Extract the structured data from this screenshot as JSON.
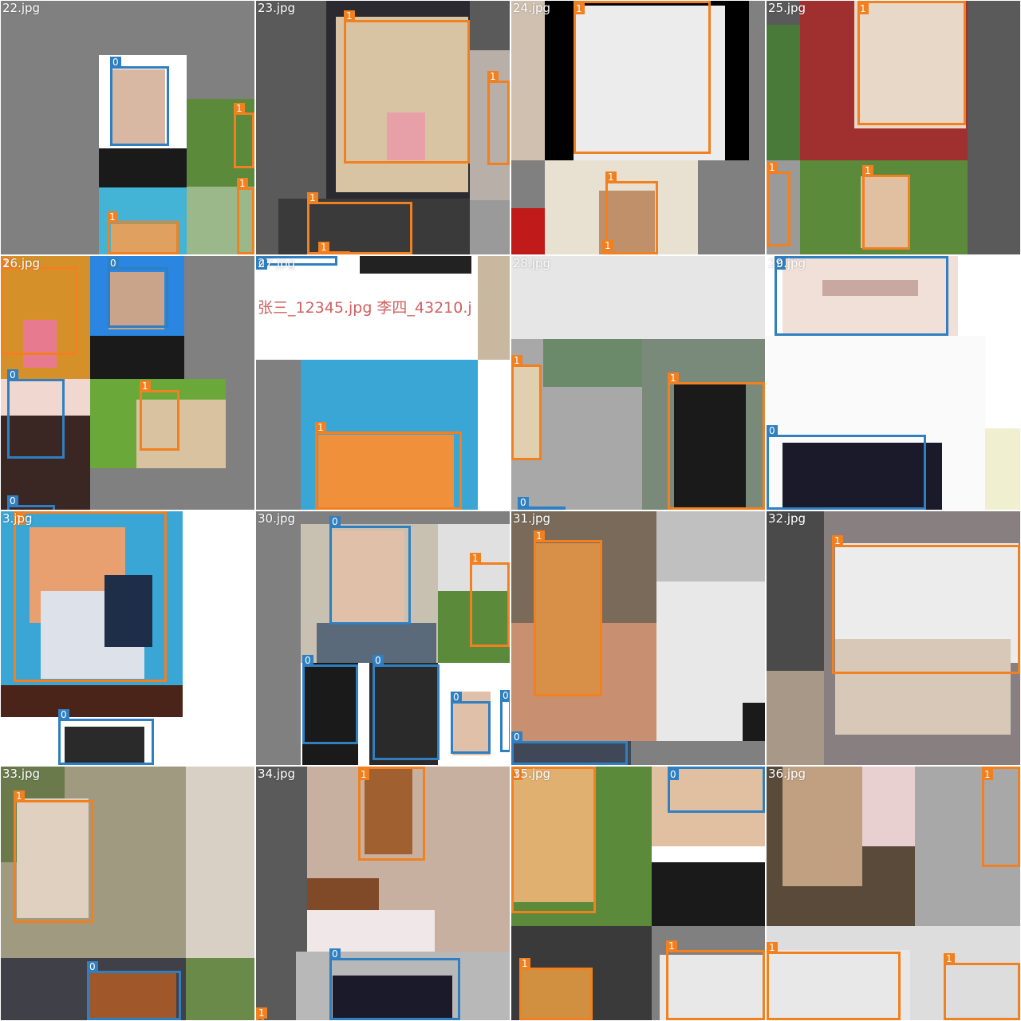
{
  "colors": {
    "face": "#2f7fc1",
    "dog": "#f08020",
    "pad": "#808080"
  },
  "tiles": [
    {
      "label": "22.jpg",
      "pad": "#808080",
      "patches": [
        [
          "#ffffff",
          123,
          68,
          110,
          166
        ],
        [
          "#1a1a1a",
          123,
          185,
          110,
          50
        ],
        [
          "#d9b8a3",
          140,
          86,
          66,
          96
        ],
        [
          "#5a8a3a",
          233,
          123,
          85,
          110
        ],
        [
          "#9ab88a",
          233,
          233,
          85,
          85
        ],
        [
          "#44b4d6",
          123,
          234,
          110,
          84
        ],
        [
          "#e0a060",
          138,
          280,
          82,
          38
        ]
      ],
      "boxes": [
        [
          "0",
          "face",
          137,
          82,
          74,
          100
        ],
        [
          "1",
          "dog",
          292,
          140,
          26,
          70
        ],
        [
          "1",
          "dog",
          296,
          234,
          22,
          84
        ],
        [
          "1",
          "dog",
          133,
          276,
          90,
          42
        ]
      ]
    },
    {
      "label": "26.jpg",
      "pad": "#808080",
      "patches": [
        [
          "#d6902a",
          0,
          0,
          112,
          154
        ],
        [
          "#e87a90",
          28,
          80,
          42,
          60
        ],
        [
          "#2a86e0",
          112,
          0,
          118,
          154
        ],
        [
          "#1a1a1a",
          112,
          100,
          118,
          54
        ],
        [
          "#c9a48a",
          135,
          20,
          70,
          72
        ],
        [
          "#f0d8d0",
          0,
          154,
          112,
          164
        ],
        [
          "#3a2622",
          0,
          200,
          112,
          118
        ],
        [
          "#6aa83a",
          112,
          154,
          170,
          112
        ],
        [
          "#d8c2a0",
          170,
          180,
          112,
          86
        ]
      ],
      "boxes": [
        [
          "1",
          "dog",
          0,
          14,
          96,
          110
        ],
        [
          "0",
          "face",
          134,
          14,
          76,
          76
        ],
        [
          "0",
          "face",
          8,
          154,
          72,
          100
        ],
        [
          "1",
          "dog",
          174,
          168,
          50,
          76
        ],
        [
          "0",
          "face",
          8,
          312,
          60,
          10
        ]
      ]
    },
    {
      "label": "3.jpg",
      "pad": "#ffffff",
      "patches": [
        [
          "#3aa6d6",
          0,
          0,
          228,
          258
        ],
        [
          "#e8a070",
          36,
          20,
          120,
          120
        ],
        [
          "#dde2ea",
          50,
          100,
          130,
          110
        ],
        [
          "#1e2e48",
          130,
          80,
          60,
          90
        ],
        [
          "#4a2418",
          0,
          218,
          228,
          40
        ],
        [
          "#2a2a2a",
          80,
          270,
          100,
          48
        ]
      ],
      "boxes": [
        [
          "1",
          "dog",
          16,
          0,
          192,
          214
        ],
        [
          "0",
          "face",
          72,
          260,
          120,
          58
        ]
      ]
    },
    {
      "label": "33.jpg",
      "pad": "#808080",
      "patches": [
        [
          "#a09a80",
          0,
          0,
          232,
          240
        ],
        [
          "#6a7a4a",
          0,
          0,
          80,
          120
        ],
        [
          "#e0d0c0",
          20,
          40,
          90,
          150
        ],
        [
          "#d8d0c4",
          232,
          0,
          86,
          240
        ],
        [
          "#404048",
          0,
          240,
          232,
          78
        ],
        [
          "#a0582a",
          110,
          258,
          110,
          60
        ],
        [
          "#6a8a4a",
          232,
          240,
          86,
          78
        ]
      ],
      "boxes": [
        [
          "1",
          "dog",
          16,
          42,
          100,
          154
        ],
        [
          "0",
          "face",
          108,
          256,
          118,
          62
        ]
      ]
    },
    {
      "label": "23.jpg",
      "pad": "#5a5a5a",
      "patches": [
        [
          "#2a2a30",
          88,
          0,
          180,
          250
        ],
        [
          "#d8c4a2",
          100,
          20,
          166,
          220
        ],
        [
          "#e8a0a8",
          164,
          140,
          48,
          60
        ],
        [
          "#b8b0a8",
          268,
          62,
          50,
          188
        ],
        [
          "#3a3a3a",
          28,
          248,
          240,
          70
        ],
        [
          "#9a9a9a",
          268,
          250,
          50,
          68
        ]
      ],
      "boxes": [
        [
          "1",
          "dog",
          110,
          24,
          158,
          180
        ],
        [
          "1",
          "dog",
          290,
          100,
          28,
          106
        ],
        [
          "1",
          "dog",
          64,
          252,
          132,
          66
        ],
        [
          "1",
          "dog",
          78,
          314,
          40,
          8
        ]
      ]
    },
    {
      "label": "27.jpg",
      "pad": "#ffffff",
      "patches": [
        [
          "#222222",
          130,
          0,
          140,
          22
        ],
        [
          "#c8b8a0",
          278,
          0,
          40,
          130
        ],
        [
          "#808080",
          0,
          130,
          56,
          188
        ],
        [
          "#3aa6d6",
          56,
          130,
          222,
          188
        ],
        [
          "#f0903a",
          78,
          224,
          170,
          94
        ]
      ],
      "boxes": [
        [
          "1",
          "dog",
          74,
          220,
          184,
          98
        ],
        [
          "0",
          "face",
          0,
          0,
          102,
          12
        ]
      ],
      "text": [
        "张三_12345.jpg 李四_43210.j",
        2,
        50
      ]
    },
    {
      "label": "30.jpg",
      "pad": "#808080",
      "patches": [
        [
          "#c8c0b0",
          56,
          16,
          174,
          178
        ],
        [
          "#e0c0a8",
          96,
          24,
          90,
          120
        ],
        [
          "#5a6a7a",
          76,
          140,
          150,
          54
        ],
        [
          "#e0e0e0",
          228,
          16,
          90,
          178
        ],
        [
          "#5a8a3a",
          228,
          100,
          90,
          94
        ],
        [
          "#ffffff",
          56,
          190,
          262,
          128
        ],
        [
          "#1a1a1a",
          58,
          190,
          70,
          128
        ],
        [
          "#2a2a2a",
          142,
          190,
          86,
          128
        ],
        [
          "#e0c0a8",
          246,
          226,
          48,
          80
        ]
      ],
      "boxes": [
        [
          "0",
          "face",
          92,
          18,
          102,
          124
        ],
        [
          "1",
          "dog",
          268,
          64,
          50,
          106
        ],
        [
          "0",
          "face",
          58,
          192,
          70,
          100
        ],
        [
          "0",
          "face",
          146,
          192,
          84,
          120
        ],
        [
          "0",
          "face",
          244,
          238,
          50,
          66
        ],
        [
          "0",
          "face",
          306,
          236,
          14,
          66
        ]
      ]
    },
    {
      "label": "34.jpg",
      "pad": "#5a5a5a",
      "patches": [
        [
          "#c8b0a0",
          64,
          0,
          254,
          232
        ],
        [
          "#a06030",
          136,
          0,
          60,
          110
        ],
        [
          "#804a28",
          64,
          140,
          90,
          50
        ],
        [
          "#f0e8e8",
          64,
          180,
          160,
          52
        ],
        [
          "#b8b8b8",
          50,
          232,
          268,
          86
        ],
        [
          "#1a1a2a",
          96,
          262,
          150,
          56
        ]
      ],
      "boxes": [
        [
          "1",
          "dog",
          128,
          0,
          84,
          118
        ],
        [
          "0",
          "face",
          92,
          240,
          164,
          78
        ],
        [
          "1",
          "dog",
          0,
          314,
          10,
          8
        ]
      ]
    },
    {
      "label": "24.jpg",
      "pad": "#808080",
      "patches": [
        [
          "#d0c0b0",
          0,
          0,
          42,
          200
        ],
        [
          "#000000",
          42,
          0,
          256,
          200
        ],
        [
          "#ececec",
          78,
          6,
          190,
          194
        ],
        [
          "#e8e0d0",
          42,
          200,
          192,
          118
        ],
        [
          "#c01a1a",
          0,
          260,
          42,
          58
        ],
        [
          "#c0906a",
          110,
          238,
          70,
          80
        ]
      ],
      "boxes": [
        [
          "1",
          "dog",
          78,
          0,
          172,
          192
        ],
        [
          "1",
          "dog",
          118,
          226,
          66,
          92
        ],
        [
          "1",
          "dog",
          114,
          312,
          10,
          8
        ]
      ]
    },
    {
      "label": "28.jpg",
      "pad": "#808080",
      "patches": [
        [
          "#e6e6e6",
          0,
          0,
          320,
          104
        ],
        [
          "#a8a8a8",
          0,
          104,
          164,
          214
        ],
        [
          "#6a8a6a",
          40,
          104,
          124,
          60
        ],
        [
          "#7a8a7a",
          164,
          104,
          154,
          214
        ],
        [
          "#1a1a1a",
          204,
          160,
          90,
          158
        ],
        [
          "#e0d0b0",
          0,
          136,
          38,
          120
        ]
      ],
      "boxes": [
        [
          "1",
          "dog",
          0,
          136,
          38,
          120
        ],
        [
          "1",
          "dog",
          196,
          158,
          122,
          160
        ],
        [
          "0",
          "face",
          8,
          314,
          60,
          6
        ]
      ]
    },
    {
      "label": "31.jpg",
      "pad": "#808080",
      "patches": [
        [
          "#7a6a5a",
          0,
          0,
          182,
          288
        ],
        [
          "#c89070",
          0,
          140,
          182,
          148
        ],
        [
          "#d89048",
          28,
          40,
          84,
          190
        ],
        [
          "#c0c0c0",
          182,
          0,
          136,
          88
        ],
        [
          "#e8e8e8",
          182,
          88,
          136,
          200
        ],
        [
          "#1a1a1a",
          290,
          240,
          28,
          48
        ],
        [
          "#404858",
          0,
          288,
          150,
          30
        ]
      ],
      "boxes": [
        [
          "1",
          "dog",
          28,
          36,
          86,
          196
        ],
        [
          "0",
          "face",
          0,
          288,
          146,
          30
        ]
      ]
    },
    {
      "label": "35.jpg",
      "pad": "#808080",
      "patches": [
        [
          "#5a8a3a",
          0,
          0,
          176,
          200
        ],
        [
          "#e0b070",
          0,
          0,
          106,
          170
        ],
        [
          "#e0c0a0",
          176,
          0,
          142,
          100
        ],
        [
          "#1a1a1a",
          176,
          100,
          142,
          100
        ],
        [
          "#ffffff",
          176,
          100,
          142,
          20
        ],
        [
          "#3a3a3a",
          0,
          200,
          176,
          118
        ],
        [
          "#d09040",
          10,
          254,
          92,
          64
        ],
        [
          "#e8e8e8",
          186,
          236,
          132,
          82
        ]
      ],
      "boxes": [
        [
          "1",
          "dog",
          0,
          0,
          106,
          184
        ],
        [
          "0",
          "face",
          196,
          0,
          122,
          58
        ],
        [
          "1",
          "dog",
          10,
          252,
          92,
          66
        ],
        [
          "1",
          "dog",
          194,
          230,
          124,
          88
        ]
      ]
    },
    {
      "label": "25.jpg",
      "pad": "#5a5a5a",
      "patches": [
        [
          "#4a7a3a",
          0,
          30,
          42,
          170
        ],
        [
          "#a03030",
          42,
          0,
          210,
          200
        ],
        [
          "#e8d8c8",
          110,
          0,
          140,
          160
        ],
        [
          "#9a9a9a",
          0,
          200,
          42,
          118
        ],
        [
          "#5a8a3a",
          42,
          200,
          210,
          118
        ],
        [
          "#e0c0a0",
          118,
          220,
          60,
          90
        ]
      ],
      "boxes": [
        [
          "1",
          "dog",
          114,
          0,
          136,
          156
        ],
        [
          "1",
          "dog",
          0,
          214,
          30,
          94
        ],
        [
          "1",
          "dog",
          120,
          218,
          60,
          94
        ]
      ]
    },
    {
      "label": "29.jpg",
      "pad": "#ffffff",
      "patches": [
        [
          "#f0e0d8",
          20,
          0,
          220,
          100
        ],
        [
          "#fafafa",
          0,
          100,
          274,
          218
        ],
        [
          "#c8a8a0",
          70,
          30,
          120,
          20
        ],
        [
          "#1a1a2a",
          20,
          234,
          200,
          84
        ],
        [
          "#f0f0d0",
          274,
          216,
          44,
          102
        ]
      ],
      "boxes": [
        [
          "0",
          "face",
          10,
          0,
          218,
          100
        ],
        [
          "0",
          "face",
          0,
          224,
          200,
          94
        ]
      ]
    },
    {
      "label": "32.jpg",
      "pad": "#808080",
      "patches": [
        [
          "#4a4a4a",
          0,
          0,
          72,
          318
        ],
        [
          "#888080",
          72,
          0,
          246,
          318
        ],
        [
          "#ececec",
          86,
          40,
          230,
          150
        ],
        [
          "#d8c8b8",
          86,
          160,
          220,
          120
        ],
        [
          "#a89888",
          0,
          200,
          72,
          118
        ]
      ],
      "boxes": [
        [
          "1",
          "dog",
          82,
          42,
          236,
          162
        ]
      ]
    },
    {
      "label": "36.jpg",
      "pad": "#808080",
      "patches": [
        [
          "#5a4a3a",
          0,
          0,
          186,
          200
        ],
        [
          "#c0a080",
          20,
          0,
          100,
          150
        ],
        [
          "#e8d0d0",
          120,
          0,
          66,
          100
        ],
        [
          "#a8a8a8",
          186,
          0,
          132,
          200
        ],
        [
          "#dddddd",
          0,
          200,
          318,
          118
        ],
        [
          "#e8e8e8",
          0,
          230,
          180,
          88
        ]
      ],
      "boxes": [
        [
          "1",
          "dog",
          270,
          0,
          48,
          126
        ],
        [
          "1",
          "dog",
          0,
          232,
          168,
          86
        ],
        [
          "1",
          "dog",
          222,
          246,
          96,
          72
        ]
      ]
    }
  ]
}
